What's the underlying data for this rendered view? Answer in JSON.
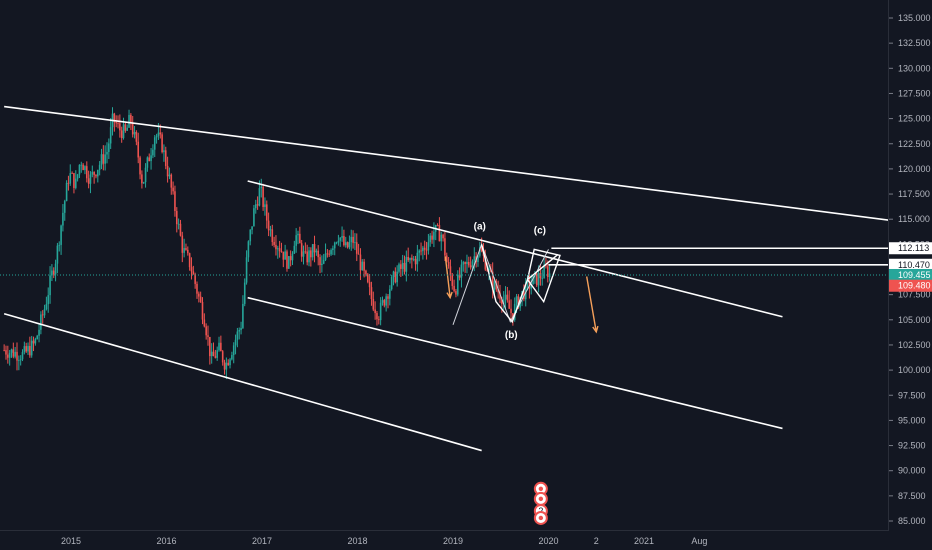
{
  "chart_data": {
    "type": "candlestick",
    "title": "",
    "xlabel": "",
    "ylabel": "",
    "ylim": [
      84.5,
      137.0
    ],
    "x_tick_labels": [
      {
        "label": "2015",
        "t": 2015.0
      },
      {
        "label": "2016",
        "t": 2016.0
      },
      {
        "label": "2017",
        "t": 2017.0
      },
      {
        "label": "2018",
        "t": 2018.0
      },
      {
        "label": "2019",
        "t": 2019.0
      },
      {
        "label": "2020",
        "t": 2020.0
      },
      {
        "label": "2",
        "t": 2020.5
      },
      {
        "label": "2021",
        "t": 2021.0
      },
      {
        "label": "Aug",
        "t": 2021.58
      }
    ],
    "y_tick_labels": [
      "85.000",
      "87.500",
      "90.000",
      "92.500",
      "95.000",
      "97.500",
      "100.000",
      "102.500",
      "105.000",
      "107.500",
      "110.000",
      "112.500",
      "115.000",
      "117.500",
      "120.000",
      "122.500",
      "125.000",
      "127.500",
      "130.000",
      "132.500",
      "135.000"
    ],
    "price_badges": [
      {
        "label": "112.113",
        "value": 112.113,
        "bg": "#ffffff",
        "fg": "#131722"
      },
      {
        "label": "110.470",
        "value": 110.47,
        "bg": "#ffffff",
        "fg": "#131722"
      },
      {
        "label": "109.455",
        "value": 109.455,
        "bg": "#26a69a",
        "fg": "#ffffff"
      },
      {
        "label": "109.480",
        "value": 109.48,
        "bg": "#ef5350",
        "fg": "#ffffff"
      }
    ],
    "price_path": [
      [
        2014.3,
        102.0
      ],
      [
        2014.5,
        101.5
      ],
      [
        2014.62,
        102.6
      ],
      [
        2014.72,
        106.0
      ],
      [
        2014.8,
        109.5
      ],
      [
        2014.85,
        111.5
      ],
      [
        2014.92,
        116.0
      ],
      [
        2014.98,
        119.5
      ],
      [
        2015.05,
        118.5
      ],
      [
        2015.1,
        121.0
      ],
      [
        2015.2,
        119.0
      ],
      [
        2015.3,
        120.5
      ],
      [
        2015.38,
        121.8
      ],
      [
        2015.44,
        125.0
      ],
      [
        2015.5,
        124.0
      ],
      [
        2015.57,
        123.5
      ],
      [
        2015.62,
        125.0
      ],
      [
        2015.7,
        121.5
      ],
      [
        2015.75,
        118.5
      ],
      [
        2015.8,
        120.5
      ],
      [
        2015.88,
        123.5
      ],
      [
        2015.95,
        122.5
      ],
      [
        2016.03,
        119.0
      ],
      [
        2016.1,
        115.5
      ],
      [
        2016.17,
        112.0
      ],
      [
        2016.25,
        110.5
      ],
      [
        2016.33,
        107.5
      ],
      [
        2016.4,
        105.0
      ],
      [
        2016.47,
        101.0
      ],
      [
        2016.55,
        102.0
      ],
      [
        2016.62,
        100.5
      ],
      [
        2016.7,
        102.5
      ],
      [
        2016.78,
        104.5
      ],
      [
        2016.85,
        112.0
      ],
      [
        2016.92,
        116.0
      ],
      [
        2016.98,
        118.0
      ],
      [
        2017.05,
        115.0
      ],
      [
        2017.1,
        113.5
      ],
      [
        2017.2,
        112.0
      ],
      [
        2017.28,
        110.5
      ],
      [
        2017.35,
        113.5
      ],
      [
        2017.45,
        111.0
      ],
      [
        2017.55,
        112.0
      ],
      [
        2017.62,
        110.0
      ],
      [
        2017.7,
        112.0
      ],
      [
        2017.8,
        113.5
      ],
      [
        2017.88,
        112.0
      ],
      [
        2017.95,
        113.0
      ],
      [
        2018.05,
        110.0
      ],
      [
        2018.15,
        107.0
      ],
      [
        2018.22,
        105.5
      ],
      [
        2018.3,
        107.5
      ],
      [
        2018.4,
        109.5
      ],
      [
        2018.5,
        110.5
      ],
      [
        2018.6,
        111.0
      ],
      [
        2018.72,
        112.5
      ],
      [
        2018.8,
        113.8
      ],
      [
        2018.88,
        113.5
      ],
      [
        2018.95,
        110.0
      ],
      [
        2019.02,
        108.0
      ],
      [
        2019.1,
        110.0
      ],
      [
        2019.2,
        111.0
      ],
      [
        2019.28,
        112.0
      ],
      [
        2019.35,
        110.5
      ],
      [
        2019.42,
        108.5
      ],
      [
        2019.5,
        107.5
      ],
      [
        2019.55,
        106.8
      ],
      [
        2019.62,
        105.5
      ],
      [
        2019.66,
        106.5
      ],
      [
        2019.72,
        107.5
      ],
      [
        2019.8,
        108.5
      ],
      [
        2019.87,
        109.0
      ],
      [
        2019.93,
        109.5
      ],
      [
        2019.98,
        110.0
      ],
      [
        2020.02,
        109.4
      ]
    ],
    "trendlines": [
      {
        "name": "upper-resistance-line",
        "from": [
          2014.3,
          126.2
        ],
        "to": [
          2023.9,
          114.5
        ]
      },
      {
        "name": "channel-top-line",
        "from": [
          2016.85,
          118.8
        ],
        "to": [
          2022.45,
          105.3
        ]
      },
      {
        "name": "channel-mid-line",
        "from": [
          2016.85,
          107.2
        ],
        "to": [
          2022.45,
          94.2
        ]
      },
      {
        "name": "channel-bottom-line",
        "from": [
          2014.3,
          105.6
        ],
        "to": [
          2019.3,
          92.0
        ]
      },
      {
        "name": "level-112-line",
        "from": [
          2020.03,
          112.113
        ],
        "to": [
          2023.95,
          112.113
        ]
      },
      {
        "name": "level-110-line",
        "from": [
          2020.0,
          110.47
        ],
        "to": [
          2023.95,
          110.47
        ]
      }
    ],
    "pattern_lines": [
      [
        [
          2019.0,
          104.5
        ],
        [
          2019.3,
          112.5
        ],
        [
          2019.6,
          104.8
        ],
        [
          2020.0,
          112.0
        ]
      ],
      [
        [
          2019.3,
          112.5
        ],
        [
          2019.45,
          106.8
        ],
        [
          2019.62,
          104.8
        ],
        [
          2019.78,
          109.0
        ],
        [
          2020.1,
          111.5
        ]
      ],
      [
        [
          2019.78,
          109.0
        ],
        [
          2019.85,
          112.0
        ],
        [
          2020.12,
          111.4
        ],
        [
          2019.95,
          106.8
        ],
        [
          2019.78,
          109.0
        ]
      ]
    ],
    "annotations": [
      {
        "text": "(a)",
        "t": 2019.28,
        "y": 114.0
      },
      {
        "text": "(b)",
        "t": 2019.61,
        "y": 103.2
      },
      {
        "text": "(c)",
        "t": 2019.91,
        "y": 113.6
      }
    ],
    "arrows": [
      {
        "name": "orange-arrow-left",
        "from": [
          2018.92,
          111.3
        ],
        "to": [
          2018.97,
          107.2
        ],
        "color": "#f6a05a"
      },
      {
        "name": "orange-arrow-right",
        "from": [
          2020.4,
          109.3
        ],
        "to": [
          2020.5,
          103.8
        ],
        "color": "#f6a05a"
      }
    ],
    "event_markers": [
      {
        "type": "dividend",
        "t": 2019.92,
        "y": 88.2,
        "color": "#ef5350"
      },
      {
        "type": "dividend",
        "t": 2019.92,
        "y": 87.2,
        "color": "#ef5350"
      },
      {
        "type": "count",
        "label": "2",
        "t": 2019.92,
        "y": 86.0,
        "color": "#ef5350"
      },
      {
        "type": "dividend",
        "t": 2019.92,
        "y": 85.3,
        "color": "#ef5350"
      }
    ]
  }
}
